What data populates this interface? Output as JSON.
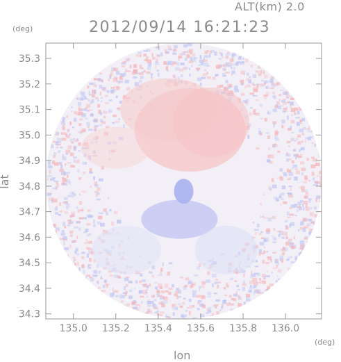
{
  "header": {
    "alt_label": "ALT(km) 2.0",
    "timestamp": "2012/09/14 16:21:23"
  },
  "chart_data": {
    "type": "heatmap",
    "title": "2012/09/14 16:21:23",
    "subtitle": "ALT(km) 2.0",
    "xlabel": "lon",
    "ylabel": "lat",
    "x_unit": "(deg)",
    "y_unit": "(deg)",
    "xlim": [
      134.87,
      136.17
    ],
    "ylim": [
      34.28,
      35.36
    ],
    "x_ticks": [
      "135.0",
      "135.2",
      "135.4",
      "135.6",
      "135.8",
      "136.0"
    ],
    "x_tick_values": [
      135.0,
      135.2,
      135.4,
      135.6,
      135.8,
      136.0
    ],
    "y_ticks": [
      "34.3",
      "34.4",
      "34.5",
      "34.6",
      "34.7",
      "34.8",
      "34.9",
      "35.0",
      "35.1",
      "35.2",
      "35.3"
    ],
    "y_tick_values": [
      34.3,
      34.4,
      34.5,
      34.6,
      34.7,
      34.8,
      34.9,
      35.0,
      35.1,
      35.2,
      35.3
    ],
    "domain": {
      "shape": "circle",
      "center_lon": 135.52,
      "center_lat": 34.82,
      "radius_deg_lat": 0.54
    },
    "colors": {
      "positive": "#f7c9c9",
      "negative": "#c9cdf7",
      "neutral": "#f2f0f6",
      "axis": "#8a8a8a"
    }
  }
}
